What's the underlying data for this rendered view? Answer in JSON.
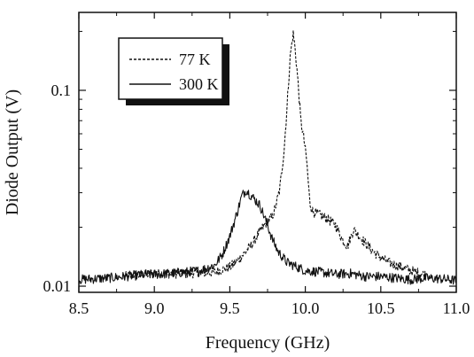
{
  "chart_data": {
    "type": "line",
    "title": "",
    "xlabel": "Frequency (GHz)",
    "ylabel": "Diode Output (V)",
    "xlim": [
      8.5,
      11.0
    ],
    "ylim": [
      0.0093,
      0.25
    ],
    "yscale": "log",
    "grid": false,
    "legend_position": "top-left",
    "x_ticks": [
      8.5,
      9.0,
      9.5,
      10.0,
      10.5,
      11.0
    ],
    "x_tick_labels": [
      "8.5",
      "9.0",
      "9.5",
      "10.0",
      "10.5",
      "11.0"
    ],
    "y_ticks": [
      0.01,
      0.1
    ],
    "y_tick_labels": [
      "0.01",
      "0.1"
    ],
    "series": [
      {
        "name": "77 K",
        "style": "dashed",
        "color": "#111111",
        "x": [
          8.8,
          9.0,
          9.2,
          9.4,
          9.5,
          9.55,
          9.6,
          9.65,
          9.68,
          9.72,
          9.75,
          9.78,
          9.8,
          9.83,
          9.86,
          9.88,
          9.9,
          9.92,
          9.93,
          9.95,
          9.97,
          9.99,
          10.01,
          10.03,
          10.05,
          10.1,
          10.15,
          10.2,
          10.25,
          10.28,
          10.32,
          10.4,
          10.45,
          10.5,
          10.55,
          10.6,
          10.7,
          10.8
        ],
        "y": [
          0.0112,
          0.0116,
          0.0116,
          0.0118,
          0.0125,
          0.0135,
          0.0148,
          0.0165,
          0.018,
          0.02,
          0.0215,
          0.0225,
          0.025,
          0.031,
          0.05,
          0.085,
          0.15,
          0.195,
          0.17,
          0.115,
          0.07,
          0.057,
          0.043,
          0.0265,
          0.024,
          0.023,
          0.022,
          0.0205,
          0.017,
          0.016,
          0.0195,
          0.0165,
          0.015,
          0.014,
          0.0132,
          0.0128,
          0.012,
          0.0114
        ]
      },
      {
        "name": "300 K",
        "style": "solid",
        "color": "#111111",
        "x": [
          8.5,
          8.7,
          8.9,
          9.1,
          9.3,
          9.4,
          9.45,
          9.5,
          9.55,
          9.58,
          9.61,
          9.64,
          9.67,
          9.7,
          9.74,
          9.78,
          9.82,
          9.88,
          9.95,
          10.0,
          10.1,
          10.2,
          10.3,
          10.4,
          10.5,
          10.6,
          10.7,
          10.8,
          10.9,
          11.0
        ],
        "y": [
          0.0108,
          0.011,
          0.0114,
          0.0116,
          0.012,
          0.0128,
          0.0145,
          0.018,
          0.024,
          0.029,
          0.031,
          0.029,
          0.0275,
          0.0258,
          0.0215,
          0.0175,
          0.015,
          0.0132,
          0.0125,
          0.012,
          0.0118,
          0.0115,
          0.0116,
          0.0112,
          0.0112,
          0.011,
          0.0108,
          0.011,
          0.0109,
          0.0107
        ]
      }
    ]
  }
}
